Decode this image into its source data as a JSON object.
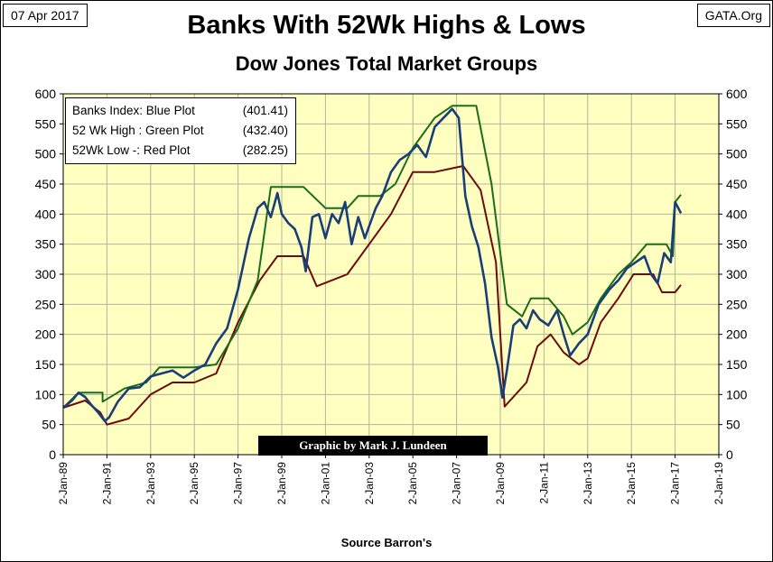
{
  "header": {
    "date": "07 Apr 2017",
    "source_site": "GATA.Org",
    "title": "Banks With 52Wk Highs & Lows",
    "subtitle": "Dow Jones Total Market Groups"
  },
  "legend": {
    "items": [
      {
        "label": "Banks Index: Blue Plot",
        "value": "(401.41)"
      },
      {
        "label": "52 Wk High : Green Plot",
        "value": "(432.40)"
      },
      {
        "label": "52Wk Low -: Red Plot",
        "value": "(282.25)"
      }
    ]
  },
  "credit": "Graphic by Mark J. Lundeen",
  "chart_data": {
    "type": "line",
    "title": "Banks With 52Wk Highs & Lows",
    "subtitle": "Dow Jones Total Market Groups",
    "xlabel": "Source Barron's",
    "ylabel": "",
    "xlim": [
      1989.0,
      2019.0
    ],
    "ylim": [
      0,
      600
    ],
    "y_ticks": [
      0,
      50,
      100,
      150,
      200,
      250,
      300,
      350,
      400,
      450,
      500,
      550,
      600
    ],
    "y_tick_labels": [
      "0",
      "50",
      "100",
      "150",
      "200",
      "250",
      "300",
      "350",
      "400",
      "450",
      "500",
      "550",
      "600"
    ],
    "x_ticks": [
      1989,
      1991,
      1993,
      1995,
      1997,
      1999,
      2001,
      2003,
      2005,
      2007,
      2009,
      2011,
      2013,
      2015,
      2017,
      2019
    ],
    "x_tick_labels": [
      "2-Jan-89",
      "2-Jan-91",
      "2-Jan-93",
      "2-Jan-95",
      "2-Jan-97",
      "2-Jan-99",
      "2-Jan-01",
      "2-Jan-03",
      "2-Jan-05",
      "2-Jan-07",
      "2-Jan-09",
      "2-Jan-11",
      "2-Jan-13",
      "2-Jan-15",
      "2-Jan-17",
      "2-Jan-19"
    ],
    "grid": true,
    "legend_position": "top-left",
    "colors": {
      "plot_bg": "#ffffc0",
      "grid": "#b4b4a0",
      "index": "#1a3e78",
      "high": "#1a6e1a",
      "low": "#6e0a0a"
    },
    "series": [
      {
        "name": "Banks Index",
        "color": "#1a3e78",
        "x": [
          1989.0,
          1989.4,
          1989.7,
          1990.0,
          1990.3,
          1990.6,
          1990.9,
          1991.1,
          1991.5,
          1992.0,
          1992.5,
          1993.0,
          1993.5,
          1994.0,
          1994.5,
          1995.0,
          1995.5,
          1996.0,
          1996.5,
          1997.0,
          1997.5,
          1997.9,
          1998.2,
          1998.5,
          1998.8,
          1999.0,
          1999.3,
          1999.6,
          1999.9,
          2000.1,
          2000.4,
          2000.7,
          2001.0,
          2001.3,
          2001.6,
          2001.9,
          2002.2,
          2002.5,
          2002.8,
          2003.0,
          2003.3,
          2003.6,
          2004.0,
          2004.4,
          2004.8,
          2005.2,
          2005.6,
          2006.0,
          2006.4,
          2006.8,
          2007.1,
          2007.4,
          2007.7,
          2008.0,
          2008.3,
          2008.6,
          2008.9,
          2009.1,
          2009.3,
          2009.6,
          2009.9,
          2010.2,
          2010.5,
          2010.8,
          2011.2,
          2011.6,
          2011.9,
          2012.2,
          2012.6,
          2013.0,
          2013.5,
          2014.0,
          2014.4,
          2014.8,
          2015.2,
          2015.6,
          2015.9,
          2016.2,
          2016.5,
          2016.8,
          2017.0,
          2017.27
        ],
        "y": [
          78,
          90,
          103,
          96,
          82,
          70,
          56,
          62,
          88,
          110,
          112,
          130,
          135,
          140,
          128,
          140,
          150,
          185,
          210,
          275,
          360,
          410,
          420,
          395,
          435,
          400,
          385,
          375,
          345,
          305,
          395,
          400,
          360,
          400,
          385,
          420,
          350,
          395,
          360,
          380,
          410,
          430,
          470,
          490,
          500,
          515,
          495,
          545,
          560,
          575,
          560,
          430,
          380,
          345,
          285,
          195,
          145,
          95,
          140,
          215,
          225,
          210,
          240,
          225,
          215,
          240,
          200,
          165,
          185,
          200,
          250,
          275,
          290,
          310,
          320,
          330,
          300,
          285,
          335,
          320,
          420,
          401.41
        ]
      },
      {
        "name": "52 Wk High",
        "color": "#1a6e1a",
        "x": [
          1989.0,
          1989.7,
          1990.8,
          1990.8,
          1991.8,
          1992.8,
          1993.4,
          1995.0,
          1996.0,
          1997.0,
          1997.9,
          1998.5,
          2000.0,
          2001.0,
          2002.0,
          2002.5,
          2003.5,
          2004.2,
          2005.0,
          2006.0,
          2006.8,
          2007.0,
          2007.9,
          2008.6,
          2009.3,
          2010.0,
          2010.4,
          2011.2,
          2011.9,
          2012.3,
          2013.0,
          2013.6,
          2014.4,
          2015.0,
          2015.7,
          2016.6,
          2016.9,
          2017.0,
          2017.27
        ],
        "y": [
          78,
          103,
          103,
          88,
          110,
          120,
          145,
          145,
          150,
          210,
          290,
          445,
          445,
          410,
          410,
          430,
          430,
          450,
          510,
          560,
          580,
          580,
          580,
          450,
          250,
          230,
          260,
          260,
          230,
          200,
          220,
          260,
          300,
          320,
          350,
          350,
          330,
          420,
          432.4
        ]
      },
      {
        "name": "52Wk Low",
        "color": "#6e0a0a",
        "x": [
          1989.0,
          1990.0,
          1990.7,
          1991.0,
          1992.0,
          1993.0,
          1994.0,
          1995.0,
          1996.0,
          1997.0,
          1998.0,
          1998.8,
          2000.0,
          2000.6,
          2002.0,
          2003.0,
          2004.0,
          2005.0,
          2006.0,
          2007.3,
          2008.1,
          2008.8,
          2009.2,
          2010.2,
          2010.7,
          2011.3,
          2011.9,
          2012.6,
          2013.0,
          2013.6,
          2014.4,
          2015.1,
          2016.0,
          2016.4,
          2017.0,
          2017.27
        ],
        "y": [
          78,
          90,
          70,
          50,
          60,
          100,
          120,
          120,
          135,
          220,
          290,
          330,
          330,
          280,
          300,
          350,
          400,
          470,
          470,
          480,
          440,
          320,
          80,
          120,
          180,
          200,
          170,
          150,
          160,
          220,
          260,
          300,
          300,
          270,
          270,
          282.25
        ]
      }
    ]
  }
}
